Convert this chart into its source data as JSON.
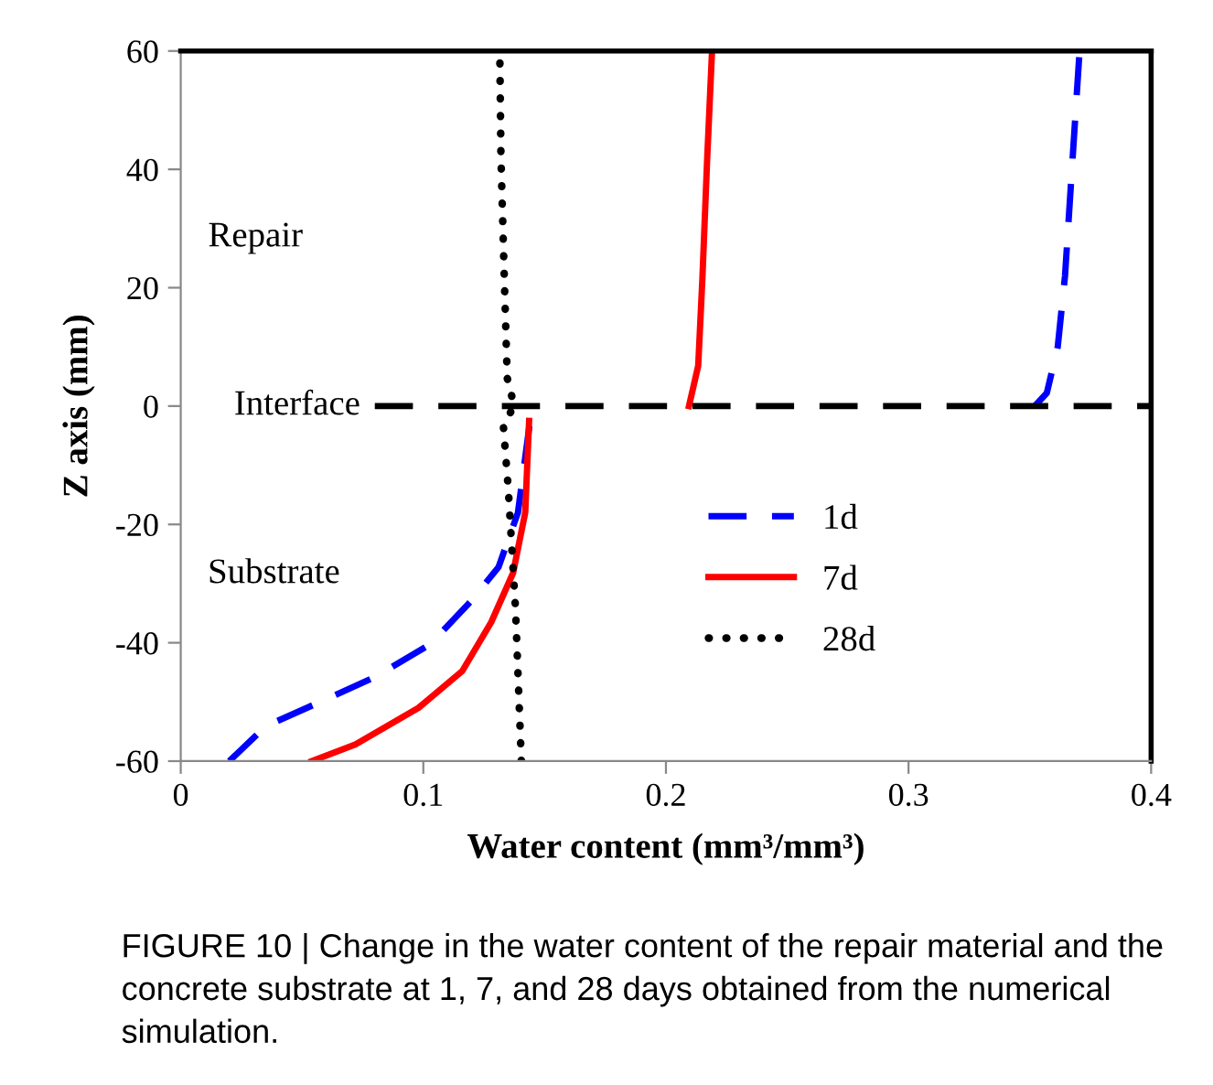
{
  "chart_data": {
    "type": "line",
    "xlabel": "Water content (mm³/mm³)",
    "ylabel": "Z axis (mm)",
    "xlim": [
      0,
      0.4
    ],
    "xticks": [
      0,
      0.1,
      0.2,
      0.3,
      0.4
    ],
    "ylim": [
      -60,
      60
    ],
    "yticks": [
      -60,
      -40,
      -20,
      0,
      20,
      40,
      60
    ],
    "grid": false,
    "legend": "lower center",
    "series": [
      {
        "name": "1d",
        "color": "#0000ff",
        "line_style": "dashed",
        "x": [
          0.02,
          0.035,
          0.052,
          0.08,
          0.103,
          0.12,
          0.131,
          0.139,
          0.144,
          null,
          0.352,
          0.357,
          0.3615,
          0.3645,
          0.3675,
          0.3705
        ],
        "values": [
          -60,
          -54.1,
          -51,
          -45.8,
          -40.2,
          -32.8,
          -27.2,
          -18,
          -2.5,
          null,
          0,
          2.2,
          10,
          22,
          41,
          60
        ]
      },
      {
        "name": "7d",
        "color": "#ff0000",
        "line_style": "solid",
        "x": [
          0.054,
          0.072,
          0.098,
          0.116,
          0.128,
          0.137,
          0.142,
          0.1436,
          null,
          0.2095,
          0.2133,
          0.215,
          0.217,
          0.219
        ],
        "values": [
          -60,
          -57.2,
          -51,
          -44.8,
          -36.5,
          -28.2,
          -18,
          -2.5,
          null,
          0,
          6.8,
          21.3,
          41.8,
          60
        ]
      },
      {
        "name": "28d",
        "color": "#000000",
        "line_style": "dotted",
        "x": [
          0.1404,
          0.138,
          0.135,
          0.133,
          0.1374,
          0.1346,
          0.1334,
          0.132,
          0.1315
        ],
        "values": [
          -60,
          -34.3,
          -13.9,
          -3.4,
          0.1,
          4.7,
          21.3,
          41.8,
          60
        ]
      },
      {
        "color": "#000000",
        "line_style": "dashed",
        "x": [
          0.08,
          0.4
        ],
        "values": [
          0,
          0
        ]
      }
    ],
    "annotations": [
      "Repair",
      "Interface",
      "Substrate",
      "FIGURE 10 | Change in the water content of the repair material and the concrete substrate at 1, 7, and 28 days obtained from the numerical simulation."
    ]
  }
}
